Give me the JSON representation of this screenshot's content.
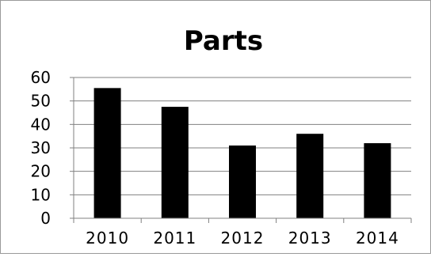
{
  "chart_data": {
    "type": "bar",
    "title": "Parts",
    "categories": [
      "2010",
      "2011",
      "2012",
      "2013",
      "2014"
    ],
    "values": [
      55.5,
      47.5,
      31,
      36,
      32
    ],
    "ylim": [
      0,
      60
    ],
    "yticks": [
      "0",
      "10",
      "20",
      "30",
      "40",
      "50",
      "60"
    ],
    "grid": true,
    "legend": "none",
    "bar_color": "#000000",
    "grid_color": "#808080"
  }
}
